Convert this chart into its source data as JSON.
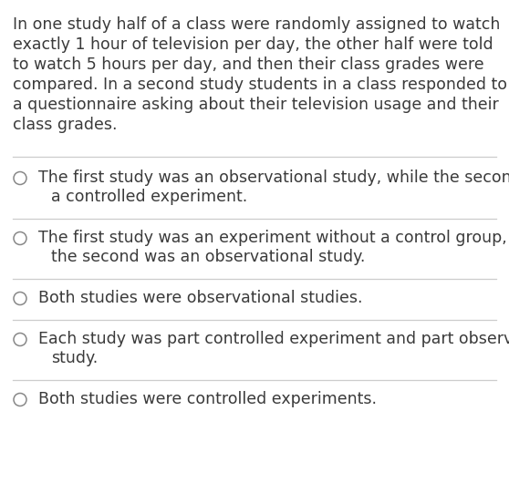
{
  "background_color": "#ffffff",
  "text_color": "#3a3a3a",
  "line_color": "#cccccc",
  "prompt_text": "In one study half of a class were randomly assigned to watch\nexactly 1 hour of television per day, the other half were told\nto watch 5 hours per day, and then their class grades were\ncompared. In a second study students in a class responded to\na questionnaire asking about their television usage and their\nclass grades.",
  "options": [
    "The first study was an observational study, while the second was\na controlled experiment.",
    "The first study was an experiment without a control group, while\nthe second was an observational study.",
    "Both studies were observational studies.",
    "Each study was part controlled experiment and part observational\nstudy.",
    "Both studies were controlled experiments."
  ],
  "prompt_fontsize": 12.5,
  "option_fontsize": 12.5,
  "circle_color": "#888888",
  "fig_width": 5.58,
  "fig_height": 5.3,
  "dpi": 100
}
